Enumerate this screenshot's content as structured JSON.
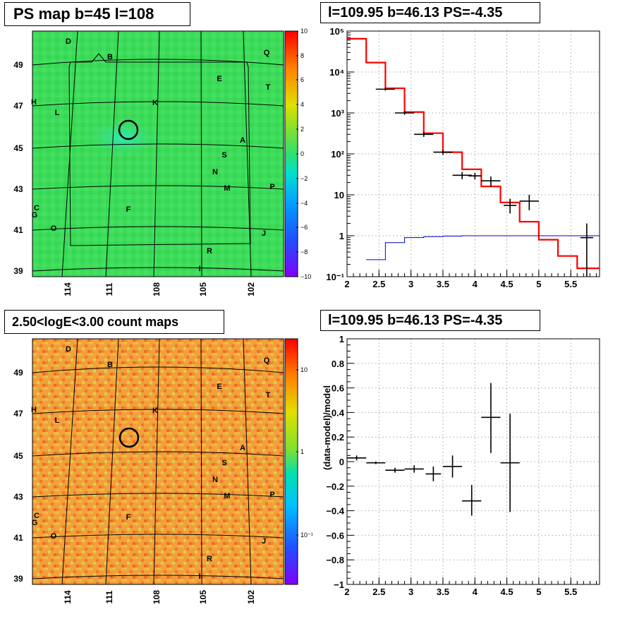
{
  "colors": {
    "map_green": "#3ddc5a",
    "map_orange": "#f5a23c",
    "fit_red": "#ff0000",
    "bg_blue": "#0000cc",
    "grid": "#bbbbbb",
    "axis": "#000000"
  },
  "panels": {
    "ps_map": {
      "title": "PS map b=45 l=108",
      "colorbar_ticks": [
        "10",
        "8",
        "6",
        "4",
        "2",
        "0",
        "−2",
        "−4",
        "−6",
        "−8",
        "−10"
      ],
      "y_ticks": [
        "49",
        "47",
        "45",
        "43",
        "41",
        "39"
      ],
      "x_ticks": [
        "114",
        "111",
        "108",
        "105",
        "102"
      ],
      "labels": [
        "D",
        "B",
        "Q",
        "E",
        "T",
        "H",
        "K",
        "L",
        "A",
        "S",
        "N",
        "P",
        "M",
        "C",
        "G",
        "F",
        "O",
        "J",
        "R",
        "I"
      ]
    },
    "count_map": {
      "title": "2.50<logE<3.00 count maps",
      "colorbar_ticks": [
        "10",
        "1",
        "10⁻¹"
      ],
      "y_ticks": [
        "49",
        "47",
        "45",
        "43",
        "41",
        "39"
      ],
      "x_ticks": [
        "114",
        "111",
        "108",
        "105",
        "102"
      ],
      "labels": [
        "D",
        "B",
        "Q",
        "E",
        "T",
        "H",
        "K",
        "L",
        "A",
        "S",
        "N",
        "P",
        "M",
        "C",
        "G",
        "F",
        "O",
        "J",
        "R",
        "I"
      ]
    },
    "spectrum": {
      "title": "l=109.95 b=46.13 PS=-4.35"
    },
    "ratio": {
      "title": "l=109.95 b=46.13 PS=-4.35"
    }
  },
  "chart_data": [
    {
      "type": "heatmap",
      "title": "PS map b=45 l=108",
      "xlabel": "",
      "ylabel": "",
      "x_ticks": [
        "114",
        "111",
        "108",
        "105",
        "102"
      ],
      "y_ticks": [
        "49",
        "47",
        "45",
        "43",
        "41",
        "39"
      ],
      "colorbar_range": [
        -10,
        10
      ],
      "dominant_value": 0,
      "source_circle": {
        "l": 109.95,
        "b": 46.13
      }
    },
    {
      "type": "line",
      "title": "l=109.95 b=46.13 PS=-4.35",
      "xlabel": "",
      "ylabel": "",
      "xlim": [
        2,
        5.95
      ],
      "ylim": [
        0.1,
        100000
      ],
      "yscale": "log",
      "x_ticks": [
        "2",
        "2.5",
        "3",
        "3.5",
        "4",
        "4.5",
        "5",
        "5.5"
      ],
      "y_ticks": [
        "10⁵",
        "10⁴",
        "10³",
        "10²",
        "10",
        "1",
        "10⁻¹"
      ],
      "grid": true,
      "series": [
        {
          "style": "step",
          "color": "#ff0000",
          "edges": [
            2.0,
            2.3,
            2.6,
            2.9,
            3.2,
            3.5,
            3.8,
            4.1,
            4.4,
            4.7,
            5.0,
            5.3,
            5.6,
            5.95
          ],
          "values": [
            65000,
            17000,
            4000,
            1050,
            320,
            110,
            42,
            16,
            6.5,
            2.2,
            0.8,
            0.32,
            0.16
          ]
        },
        {
          "style": "step",
          "color": "#0000cc",
          "edges": [
            2.3,
            2.6,
            2.9,
            3.2,
            3.5,
            3.8,
            4.1,
            4.4,
            4.7,
            5.0,
            5.3,
            5.6,
            5.95
          ],
          "values": [
            0.26,
            0.68,
            0.9,
            0.95,
            0.98,
            1.0,
            1.0,
            1.0,
            1.0,
            1.0,
            1.0,
            1.0
          ]
        },
        {
          "style": "points",
          "color": "#000000",
          "x": [
            2.6,
            2.9,
            3.2,
            3.5,
            3.8,
            4.0,
            4.25,
            4.55,
            4.85,
            5.75
          ],
          "xerr": [
            0.15,
            0.15,
            0.15,
            0.15,
            0.15,
            0.1,
            0.15,
            0.1,
            0.15,
            0.1
          ],
          "y": [
            3800,
            1000,
            300,
            110,
            30,
            29,
            22,
            5.5,
            7,
            0.9
          ],
          "ylo": [
            3500,
            900,
            260,
            95,
            24,
            24,
            16,
            3.5,
            4.2,
            0.09
          ],
          "yhi": [
            4100,
            1100,
            340,
            125,
            36,
            34,
            28,
            8,
            10,
            2
          ]
        }
      ]
    },
    {
      "type": "scatter",
      "title": "l=109.95 b=46.13 PS=-4.35",
      "xlabel": "",
      "ylabel": "(data-model)/model",
      "xlim": [
        2,
        5.95
      ],
      "ylim": [
        -1,
        1
      ],
      "x_ticks": [
        "2",
        "2.5",
        "3",
        "3.5",
        "4",
        "4.5",
        "5",
        "5.5"
      ],
      "y_ticks": [
        "1",
        "0.8",
        "0.6",
        "0.4",
        "0.2",
        "0",
        "−0.2",
        "−0.4",
        "−0.6",
        "−0.8",
        "−1"
      ],
      "grid": true,
      "series": [
        {
          "color": "#000000",
          "x": [
            2.15,
            2.45,
            2.75,
            3.05,
            3.35,
            3.65,
            3.95,
            4.25,
            4.55
          ],
          "xerr": [
            0.15,
            0.15,
            0.15,
            0.15,
            0.12,
            0.15,
            0.15,
            0.15,
            0.15
          ],
          "y": [
            0.03,
            -0.01,
            -0.07,
            -0.06,
            -0.1,
            -0.04,
            -0.32,
            0.36,
            -0.01
          ],
          "ylo": [
            0.01,
            -0.02,
            -0.09,
            -0.09,
            -0.16,
            -0.13,
            -0.44,
            0.07,
            -0.41
          ],
          "yhi": [
            0.05,
            0.0,
            -0.05,
            -0.03,
            -0.04,
            0.05,
            -0.19,
            0.64,
            0.39
          ]
        }
      ]
    }
  ]
}
